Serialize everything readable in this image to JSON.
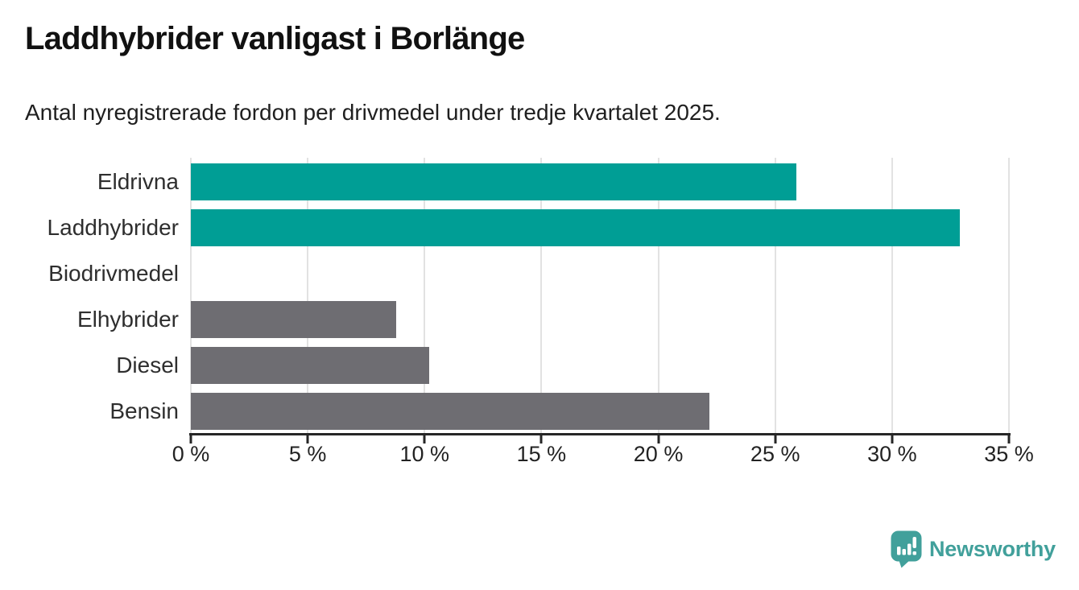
{
  "header": {
    "title": "Laddhybrider vanligast i Borlänge",
    "subtitle": "Antal nyregistrerade fordon per drivmedel under tredje kvartalet 2025."
  },
  "chart_data": {
    "type": "bar",
    "orientation": "horizontal",
    "title": "Laddhybrider vanligast i Borlänge",
    "subtitle": "Antal nyregistrerade fordon per drivmedel under tredje kvartalet 2025.",
    "categories": [
      "Eldrivna",
      "Laddhybrider",
      "Biodrivmedel",
      "Elhybrider",
      "Diesel",
      "Bensin"
    ],
    "values": [
      25.9,
      32.9,
      0,
      8.8,
      10.2,
      22.2
    ],
    "unit": "%",
    "bar_colors": [
      "#009e95",
      "#009e95",
      "#6e6d72",
      "#6e6d72",
      "#6e6d72",
      "#6e6d72"
    ],
    "xlabel": "",
    "ylabel": "",
    "xlim": [
      0,
      35
    ],
    "x_ticks": [
      0,
      5,
      10,
      15,
      20,
      25,
      30,
      35
    ],
    "x_tick_labels": [
      "0 %",
      "5 %",
      "10 %",
      "15 %",
      "20 %",
      "25 %",
      "30 %",
      "35 %"
    ],
    "grid": "vertical-behind-bars",
    "legend": "none"
  },
  "colors": {
    "teal": "#009e95",
    "gray": "#6e6d72",
    "gridline": "#e2e2e2",
    "axis": "#262626",
    "text": "#1f1f1f"
  },
  "footer": {
    "brand": "Newsworthy",
    "brand_color": "#41a09b",
    "logo_icon": "speech-bubble-bar-chart-icon"
  }
}
